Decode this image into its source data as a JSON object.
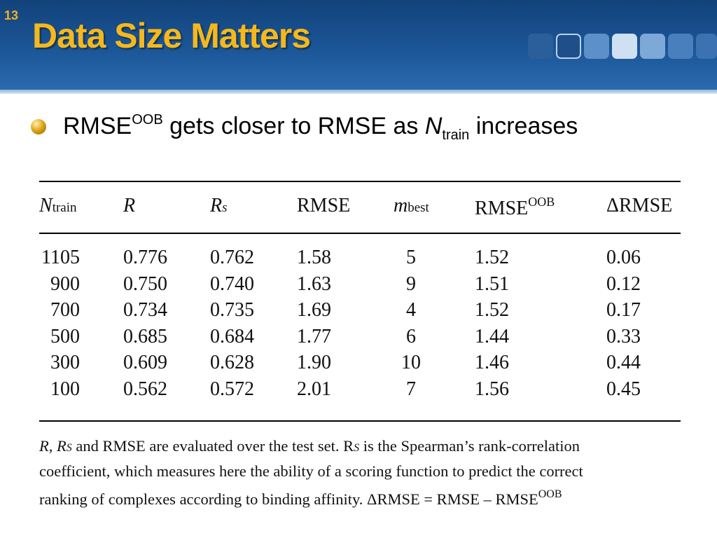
{
  "header": {
    "slide_number": "13",
    "title": "Data Size Matters"
  },
  "bullet": {
    "part1": "RMSE",
    "part1_sup": "OOB",
    "part2": " gets closer to RMSE as ",
    "n": "N",
    "n_sub": "train",
    "part3": " increases"
  },
  "table": {
    "headers": {
      "ntrain": "N",
      "ntrain_sub": "train",
      "r": "R",
      "rs": "R",
      "rs_sub": "s",
      "rmse": "RMSE",
      "mbest": "m",
      "mbest_sub": "best",
      "rmse_oob": "RMSE",
      "rmse_oob_sup": "OOB",
      "delta": "ΔRMSE"
    },
    "rows": [
      [
        "1105",
        "0.776",
        "0.762",
        "1.58",
        "5",
        "1.52",
        "0.06"
      ],
      [
        "900",
        "0.750",
        "0.740",
        "1.63",
        "9",
        "1.51",
        "0.12"
      ],
      [
        "700",
        "0.734",
        "0.735",
        "1.69",
        "4",
        "1.52",
        "0.17"
      ],
      [
        "500",
        "0.685",
        "0.684",
        "1.77",
        "6",
        "1.44",
        "0.33"
      ],
      [
        "300",
        "0.609",
        "0.628",
        "1.90",
        "10",
        "1.46",
        "0.44"
      ],
      [
        "100",
        "0.562",
        "0.572",
        "2.01",
        "7",
        "1.56",
        "0.45"
      ]
    ]
  },
  "footnote": {
    "line1": "R, R",
    "line1_sub": "S",
    "line1_b": " and RMSE are evaluated over the test set. R",
    "line1_sub2": "S",
    "line1_c": " is the Spearman’s rank-correlation",
    "line2": "coefficient, which measures here the ability of a scoring function to predict the correct",
    "line3": "ranking of complexes according to binding affinity. ΔRMSE = RMSE – RMSE",
    "line3_sup": "OOB"
  },
  "colors": {
    "header_dark": "#12427a",
    "header_light": "#2a6aae",
    "title_gold": "#f5b81c",
    "bullet_gold": "#e2a81a"
  }
}
